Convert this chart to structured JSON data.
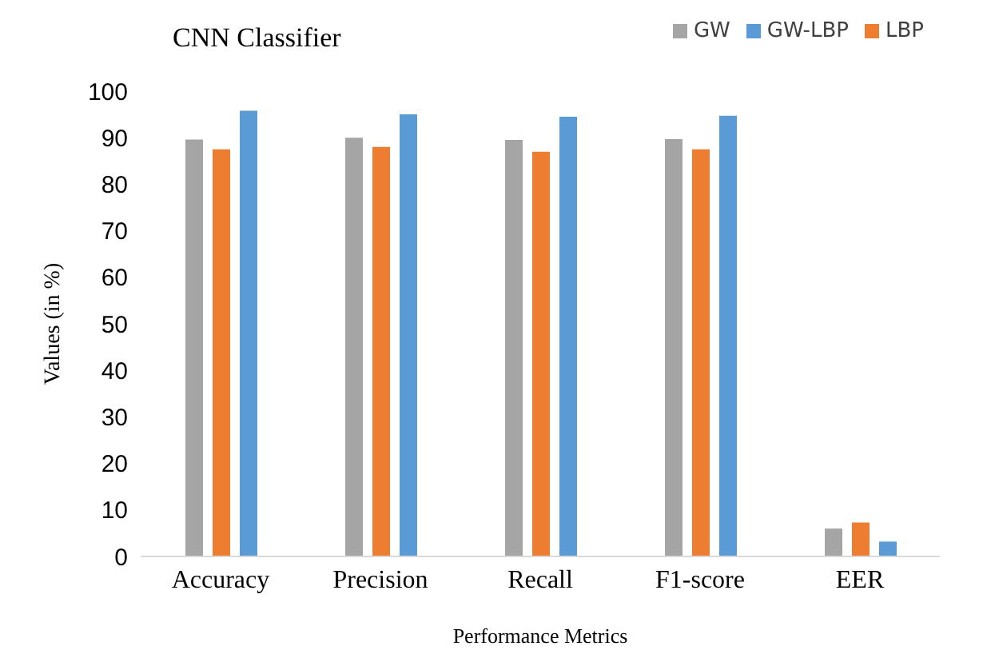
{
  "chart_data": {
    "type": "bar",
    "title": "CNN Classifier",
    "xlabel": "Performance Metrics",
    "ylabel": "Values (in %)",
    "categories": [
      "Accuracy",
      "Precision",
      "Recall",
      "F1-score",
      "EER"
    ],
    "series": [
      {
        "name": "GW",
        "color": "#a5a5a5",
        "values": [
          89.6,
          90,
          89.5,
          89.7,
          6
        ]
      },
      {
        "name": "LBP",
        "color": "#ed7d31",
        "values": [
          87.5,
          88,
          87,
          87.5,
          7.3
        ]
      },
      {
        "name": "GW-LBP",
        "color": "#5b9bd5",
        "values": [
          95.8,
          95,
          94.5,
          94.7,
          3.2
        ]
      }
    ],
    "ylim": [
      0,
      100
    ],
    "yticks": [
      0,
      10,
      20,
      30,
      40,
      50,
      60,
      70,
      80,
      90,
      100
    ],
    "grid": false,
    "legend": "top right"
  }
}
